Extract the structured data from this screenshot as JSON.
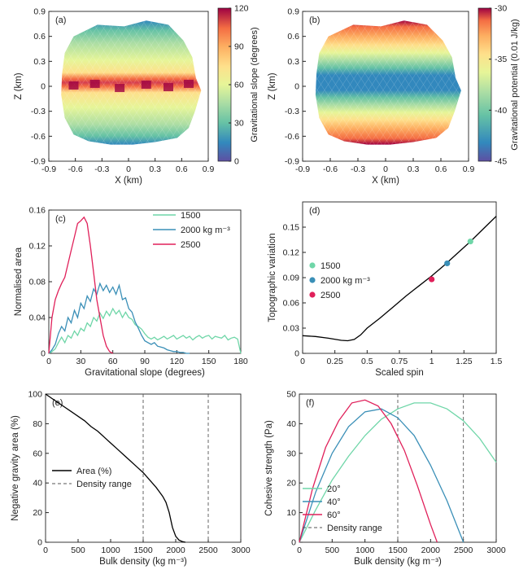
{
  "chart_data": [
    {
      "panel": "(a)",
      "type": "heatmap",
      "xlabel": "X (km)",
      "ylabel": "Z (km)",
      "xlim": [
        -0.9,
        0.9
      ],
      "ylim": [
        -0.9,
        0.9
      ],
      "xticks": [
        "-0.9",
        "-0.6",
        "-0.3",
        "0",
        "0.3",
        "0.6",
        "0.9"
      ],
      "yticks": [
        "-0.9",
        "-0.6",
        "-0.3",
        "0",
        "0.3",
        "0.6",
        "0.9"
      ],
      "colorbar_label": "Gravitational slope (degrees)",
      "colorbar_ticks": [
        "0",
        "30",
        "60",
        "90",
        "120"
      ],
      "colorbar_range": [
        0,
        120
      ],
      "colormap": [
        "#5e4fa2",
        "#3288bd",
        "#66c2a5",
        "#abdda4",
        "#e6f598",
        "#fee08b",
        "#fdae61",
        "#f46d43",
        "#d53e4f",
        "#9e0142"
      ]
    },
    {
      "panel": "(b)",
      "type": "heatmap",
      "xlabel": "X (km)",
      "ylabel": "Z (km)",
      "xlim": [
        -0.9,
        0.9
      ],
      "ylim": [
        -0.9,
        0.9
      ],
      "xticks": [
        "-0.9",
        "-0.6",
        "-0.3",
        "0",
        "0.3",
        "0.6",
        "0.9"
      ],
      "yticks": [
        "-0.9",
        "-0.6",
        "-0.3",
        "0",
        "0.3",
        "0.6",
        "0.9"
      ],
      "colorbar_label": "Gravitational potential (0.01 J/kg)",
      "colorbar_ticks": [
        "-45",
        "-40",
        "-35",
        "-30"
      ],
      "colorbar_range": [
        -45,
        -30
      ]
    },
    {
      "panel": "(c)",
      "type": "line",
      "xlabel": "Gravitational slope (degrees)",
      "ylabel": "Normalised area",
      "xlim": [
        0,
        180
      ],
      "ylim": [
        0,
        0.16
      ],
      "xticks": [
        "0",
        "30",
        "60",
        "90",
        "120",
        "150",
        "180"
      ],
      "yticks": [
        "0",
        "0.04",
        "0.08",
        "0.12",
        "0.16"
      ],
      "legend": [
        "1500",
        "2000 kg m⁻³",
        "2500"
      ],
      "series": [
        {
          "name": "1500",
          "color": "#6fd6a8",
          "x": [
            0,
            3,
            6,
            9,
            12,
            15,
            18,
            21,
            24,
            27,
            30,
            33,
            36,
            39,
            42,
            45,
            48,
            51,
            54,
            57,
            60,
            63,
            66,
            69,
            72,
            75,
            78,
            81,
            84,
            87,
            90,
            93,
            96,
            99,
            102,
            105,
            108,
            111,
            114,
            117,
            120,
            123,
            126,
            129,
            132,
            135,
            138,
            141,
            144,
            147,
            150,
            153,
            156,
            159,
            162,
            165,
            168,
            171,
            174,
            177,
            180
          ],
          "y": [
            0,
            0.002,
            0.005,
            0.012,
            0.018,
            0.012,
            0.02,
            0.017,
            0.025,
            0.02,
            0.028,
            0.025,
            0.034,
            0.03,
            0.04,
            0.036,
            0.045,
            0.039,
            0.047,
            0.042,
            0.05,
            0.044,
            0.048,
            0.04,
            0.046,
            0.04,
            0.038,
            0.032,
            0.03,
            0.027,
            0.022,
            0.018,
            0.016,
            0.018,
            0.015,
            0.017,
            0.019,
            0.016,
            0.018,
            0.02,
            0.016,
            0.018,
            0.02,
            0.017,
            0.019,
            0.015,
            0.018,
            0.02,
            0.017,
            0.019,
            0.02,
            0.016,
            0.019,
            0.018,
            0.017,
            0.02,
            0.015,
            0.017,
            0.018,
            0.016,
            0.0
          ]
        },
        {
          "name": "2000 kg m⁻³",
          "color": "#3a8fb7",
          "x": [
            0,
            3,
            6,
            9,
            12,
            15,
            18,
            21,
            24,
            27,
            30,
            33,
            36,
            39,
            42,
            45,
            48,
            51,
            54,
            57,
            60,
            63,
            66,
            69,
            72,
            75,
            78,
            81,
            84,
            87,
            90,
            93,
            96,
            99,
            102,
            105,
            108,
            111,
            114,
            117,
            120,
            123,
            126,
            129,
            132
          ],
          "y": [
            0,
            0.004,
            0.01,
            0.022,
            0.03,
            0.025,
            0.04,
            0.034,
            0.048,
            0.04,
            0.056,
            0.05,
            0.064,
            0.058,
            0.072,
            0.066,
            0.078,
            0.07,
            0.076,
            0.068,
            0.074,
            0.066,
            0.076,
            0.06,
            0.062,
            0.05,
            0.046,
            0.035,
            0.028,
            0.02,
            0.014,
            0.012,
            0.01,
            0.012,
            0.008,
            0.007,
            0.006,
            0.004,
            0.003,
            0.002,
            0.002,
            0.001,
            0.001,
            0.0,
            0.0
          ]
        },
        {
          "name": "2500",
          "color": "#e0205a",
          "x": [
            0,
            3,
            6,
            9,
            12,
            15,
            18,
            21,
            24,
            27,
            30,
            33,
            36,
            39,
            42,
            45,
            48,
            51,
            54,
            57,
            60
          ],
          "y": [
            0,
            0.04,
            0.06,
            0.07,
            0.078,
            0.085,
            0.1,
            0.115,
            0.13,
            0.145,
            0.148,
            0.152,
            0.145,
            0.12,
            0.09,
            0.06,
            0.04,
            0.02,
            0.008,
            0.002,
            0.0
          ]
        }
      ]
    },
    {
      "panel": "(d)",
      "type": "line",
      "xlabel": "Scaled spin",
      "ylabel": "Topographic variation",
      "xlim": [
        0,
        1.5
      ],
      "ylim": [
        0,
        0.18
      ],
      "xticks": [
        "0",
        "0.25",
        "0.5",
        "0.75",
        "1",
        "1.25",
        "1.5"
      ],
      "yticks": [
        "0",
        "0.03",
        "0.06",
        "0.09",
        "0.12",
        "0.15"
      ],
      "legend": [
        "1500",
        "2000 kg m⁻³",
        "2500"
      ],
      "series": [
        {
          "name": "curve",
          "color": "#000000",
          "x": [
            0,
            0.1,
            0.2,
            0.3,
            0.35,
            0.4,
            0.45,
            0.5,
            0.6,
            0.7,
            0.8,
            0.9,
            1.0,
            1.1,
            1.2,
            1.3,
            1.4,
            1.5
          ],
          "y": [
            0.021,
            0.02,
            0.018,
            0.0155,
            0.015,
            0.0165,
            0.022,
            0.03,
            0.042,
            0.055,
            0.068,
            0.08,
            0.092,
            0.105,
            0.119,
            0.133,
            0.148,
            0.163
          ]
        }
      ],
      "points": [
        {
          "name": "1500",
          "x": 1.3,
          "y": 0.133,
          "color": "#6fd6a8"
        },
        {
          "name": "2000 kg m⁻³",
          "x": 1.12,
          "y": 0.107,
          "color": "#3a8fb7"
        },
        {
          "name": "2500",
          "x": 1.0,
          "y": 0.088,
          "color": "#e0205a"
        }
      ]
    },
    {
      "panel": "(e)",
      "type": "line",
      "xlabel": "Bulk density (kg m⁻³)",
      "ylabel": "Negative gravity area (%)",
      "xlim": [
        0,
        3000
      ],
      "ylim": [
        0,
        100
      ],
      "xticks": [
        "0",
        "500",
        "1000",
        "1500",
        "2000",
        "2500",
        "3000"
      ],
      "yticks": [
        "0",
        "20",
        "40",
        "60",
        "80",
        "100"
      ],
      "legend": [
        "Area (%)",
        "Density range"
      ],
      "series": [
        {
          "name": "Area (%)",
          "color": "#000000",
          "x": [
            0,
            100,
            200,
            300,
            400,
            500,
            600,
            700,
            800,
            900,
            1000,
            1100,
            1200,
            1300,
            1400,
            1500,
            1600,
            1700,
            1750,
            1800,
            1850,
            1900,
            1950,
            2000,
            2050,
            2100,
            2150
          ],
          "y": [
            100,
            97,
            94,
            91,
            88,
            85,
            82,
            78,
            75,
            71,
            67,
            63,
            59,
            55,
            51,
            47,
            42,
            37,
            34,
            31,
            27,
            20,
            10,
            4,
            1.5,
            0.5,
            0
          ]
        }
      ],
      "vlines": [
        1500,
        2500
      ]
    },
    {
      "panel": "(f)",
      "type": "line",
      "xlabel": "Bulk density (kg m⁻³)",
      "ylabel": "Cohesive strength (Pa)",
      "xlim": [
        0,
        3000
      ],
      "ylim": [
        0,
        50
      ],
      "xticks": [
        "0",
        "500",
        "1000",
        "1500",
        "2000",
        "2500",
        "3000"
      ],
      "yticks": [
        "0",
        "10",
        "20",
        "30",
        "40",
        "50"
      ],
      "legend": [
        "20°",
        "40°",
        "60°",
        "Density range"
      ],
      "series": [
        {
          "name": "20°",
          "color": "#6fd6a8",
          "x": [
            0,
            250,
            500,
            750,
            1000,
            1250,
            1500,
            1750,
            2000,
            2250,
            2500,
            2750,
            3000
          ],
          "y": [
            0,
            11,
            21,
            29,
            36,
            41.5,
            45,
            47,
            47,
            45,
            41,
            35,
            27
          ]
        },
        {
          "name": "40°",
          "color": "#3a8fb7",
          "x": [
            0,
            250,
            500,
            750,
            1000,
            1250,
            1500,
            1750,
            2000,
            2250,
            2500
          ],
          "y": [
            0,
            17,
            30,
            39,
            44,
            45,
            42,
            36,
            26,
            14,
            0
          ]
        },
        {
          "name": "60°",
          "color": "#e0205a",
          "x": [
            0,
            200,
            400,
            600,
            800,
            1000,
            1200,
            1400,
            1600,
            1800,
            2000,
            2100
          ],
          "y": [
            0,
            18,
            32,
            41,
            47,
            48,
            46,
            40,
            31,
            19,
            6,
            0
          ]
        }
      ],
      "vlines": [
        1500,
        2500
      ]
    }
  ]
}
